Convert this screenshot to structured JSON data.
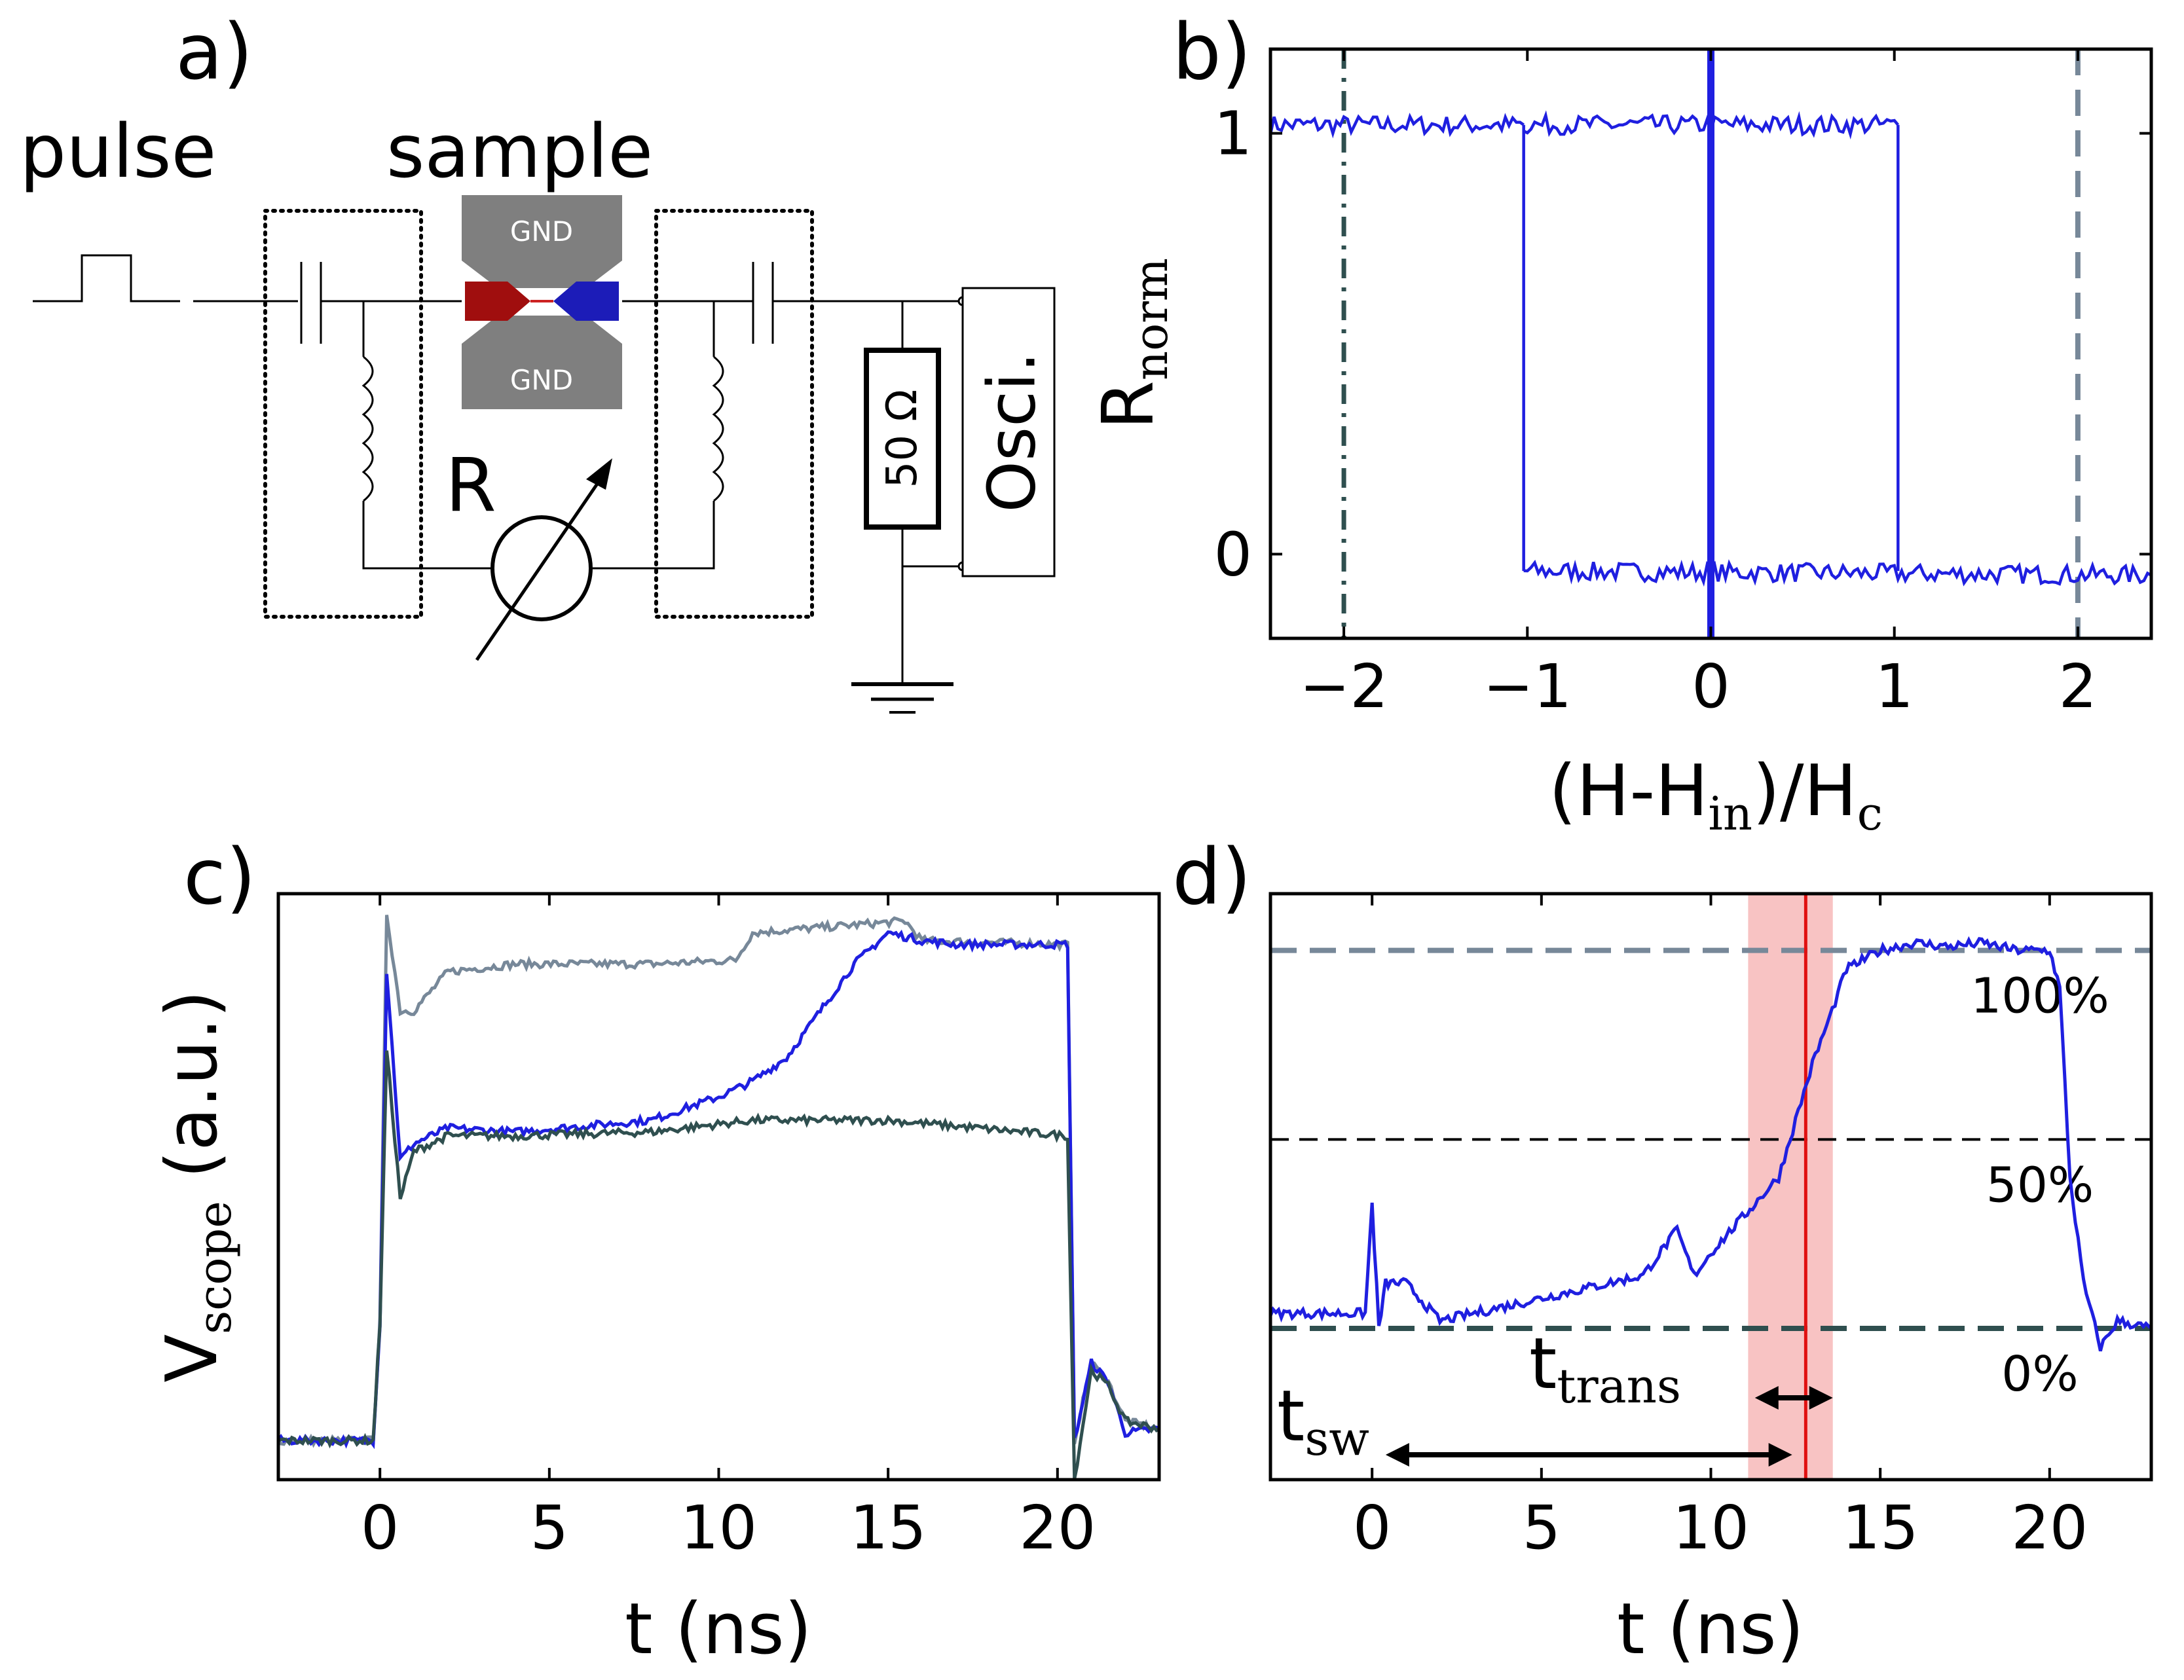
{
  "panel_labels": [
    "a)",
    "b)",
    "c)",
    "d)"
  ],
  "diagram": {
    "pulse_label": "pulse",
    "sample_label": "sample",
    "gnd_top": "GND",
    "gnd_bottom": "GND",
    "resistance_label": "R",
    "resistor_label": "50 Ω",
    "scope_label": "Osci."
  },
  "chart_data": [
    {
      "panel": "b",
      "type": "line",
      "xlabel_parts": [
        "(H-H",
        "in",
        ")/H",
        "c"
      ],
      "ylabel_parts": [
        "R",
        "norm"
      ],
      "xlim": [
        -2.4,
        2.4
      ],
      "ylim": [
        -0.2,
        1.2
      ],
      "xticks": [
        -2,
        -1,
        0,
        1,
        2
      ],
      "xtick_labels": [
        "−2",
        "−1",
        "0",
        "1",
        "2"
      ],
      "yticks": [
        0,
        1
      ],
      "ytick_labels": [
        "0",
        "1"
      ],
      "series": [
        {
          "color": "#1f1fe0",
          "x": [
            -2.4,
            -1.02,
            -1.02,
            1.02,
            1.02,
            2.4
          ],
          "y": [
            1.02,
            1.02,
            -0.04,
            -0.04,
            1.02,
            1.02
          ],
          "note_upper": "upper branch from -2.4 to 1.02",
          "segments": [
            {
              "x": [
                -2.4,
                -1.02
              ],
              "y": [
                1.02,
                1.02
              ]
            },
            {
              "x": [
                -1.02,
                -1.02
              ],
              "y": [
                1.02,
                -0.04
              ]
            },
            {
              "x": [
                -1.02,
                2.4
              ],
              "y": [
                -0.04,
                -0.05
              ]
            },
            {
              "x": [
                -1.02,
                1.02
              ],
              "y": [
                1.02,
                1.02
              ]
            },
            {
              "x": [
                1.02,
                1.02
              ],
              "y": [
                1.02,
                -0.04
              ]
            }
          ]
        }
      ],
      "vlines": [
        {
          "x": -2,
          "style": "dashdot",
          "color": "#2f4f4f"
        },
        {
          "x": 0,
          "style": "solid",
          "color": "#1f1fe0"
        },
        {
          "x": 2,
          "style": "dashed",
          "color": "#778899"
        }
      ]
    },
    {
      "panel": "c",
      "type": "line",
      "xlabel": "t (ns)",
      "ylabel_parts": [
        "V",
        "scope",
        " (a.u.)"
      ],
      "xlim": [
        -3,
        23
      ],
      "ylim": [
        -0.1,
        1.4
      ],
      "xticks": [
        0,
        5,
        10,
        15,
        20
      ],
      "xtick_labels": [
        "0",
        "5",
        "10",
        "15",
        "20"
      ],
      "series": [
        {
          "color": "#778899",
          "x": [
            -3,
            -0.2,
            0,
            0.2,
            0.6,
            1,
            2,
            4,
            8,
            10.5,
            11,
            14,
            15.5,
            16,
            20.3,
            20.5,
            21,
            21.5,
            22,
            23
          ],
          "y": [
            0,
            0,
            0.3,
            1.35,
            1.1,
            1.1,
            1.2,
            1.22,
            1.22,
            1.23,
            1.3,
            1.32,
            1.33,
            1.28,
            1.27,
            0.0,
            0.2,
            0.15,
            0.05,
            0.03
          ]
        },
        {
          "color": "#1f1fe0",
          "x": [
            -3,
            -0.2,
            0,
            0.2,
            0.6,
            1,
            2,
            4,
            8,
            10,
            11,
            12,
            13,
            14,
            15,
            16,
            17,
            20.3,
            20.5,
            21,
            21.5,
            22,
            23
          ],
          "y": [
            0,
            0,
            0.3,
            1.2,
            0.72,
            0.76,
            0.8,
            0.79,
            0.82,
            0.88,
            0.92,
            0.98,
            1.1,
            1.22,
            1.3,
            1.28,
            1.27,
            1.27,
            0.0,
            0.2,
            0.15,
            0.02,
            0.03
          ]
        },
        {
          "color": "#2f4f4f",
          "x": [
            -3,
            -0.2,
            0,
            0.2,
            0.6,
            1,
            2,
            4,
            8,
            11,
            15,
            20.3,
            20.5,
            21,
            21.5,
            22,
            23
          ],
          "y": [
            0,
            0,
            0.3,
            1.0,
            0.62,
            0.74,
            0.78,
            0.78,
            0.79,
            0.82,
            0.82,
            0.78,
            -0.1,
            0.18,
            0.14,
            0.05,
            0.03
          ]
        }
      ]
    },
    {
      "panel": "d",
      "type": "line",
      "xlabel": "t (ns)",
      "xlim": [
        -3,
        23
      ],
      "ylim": [
        -0.4,
        1.15
      ],
      "xticks": [
        0,
        5,
        10,
        15,
        20
      ],
      "xtick_labels": [
        "0",
        "5",
        "10",
        "15",
        "20"
      ],
      "series": [
        {
          "color": "#1f1fe0",
          "x": [
            -3,
            -0.2,
            0,
            0.2,
            0.4,
            1,
            2,
            4,
            6,
            8,
            9,
            9.5,
            10,
            11,
            12,
            12.5,
            13,
            13.5,
            14,
            15,
            16,
            17,
            18,
            19,
            20,
            20.3,
            20.6,
            21,
            21.5,
            22,
            23
          ],
          "y": [
            0.04,
            0.04,
            0.33,
            0.0,
            0.12,
            0.12,
            0.02,
            0.06,
            0.1,
            0.14,
            0.26,
            0.14,
            0.2,
            0.3,
            0.4,
            0.55,
            0.7,
            0.82,
            0.95,
            1.0,
            1.02,
            1.01,
            1.02,
            1.0,
            1.0,
            0.9,
            0.4,
            0.12,
            -0.05,
            0.02,
            0.0
          ]
        }
      ],
      "hlines": [
        {
          "y": 1,
          "label": "100%",
          "style": "dashed",
          "color": "#778899"
        },
        {
          "y": 0.5,
          "label": "50%",
          "style": "dashed-thin",
          "color": "#000000"
        },
        {
          "y": 0,
          "label": "0%",
          "style": "dashed",
          "color": "#2f4f4f"
        }
      ],
      "vline": {
        "x": 12.8,
        "color": "#e01010"
      },
      "span": {
        "x0": 11.1,
        "x1": 13.6,
        "color": "#f4a3a3"
      },
      "annotations": [
        {
          "parts": [
            "t",
            "sw"
          ],
          "arrow_x": [
            0.4,
            12.4
          ]
        },
        {
          "parts": [
            "t",
            "trans"
          ],
          "arrow_x": [
            11.3,
            13.6
          ]
        }
      ]
    }
  ]
}
